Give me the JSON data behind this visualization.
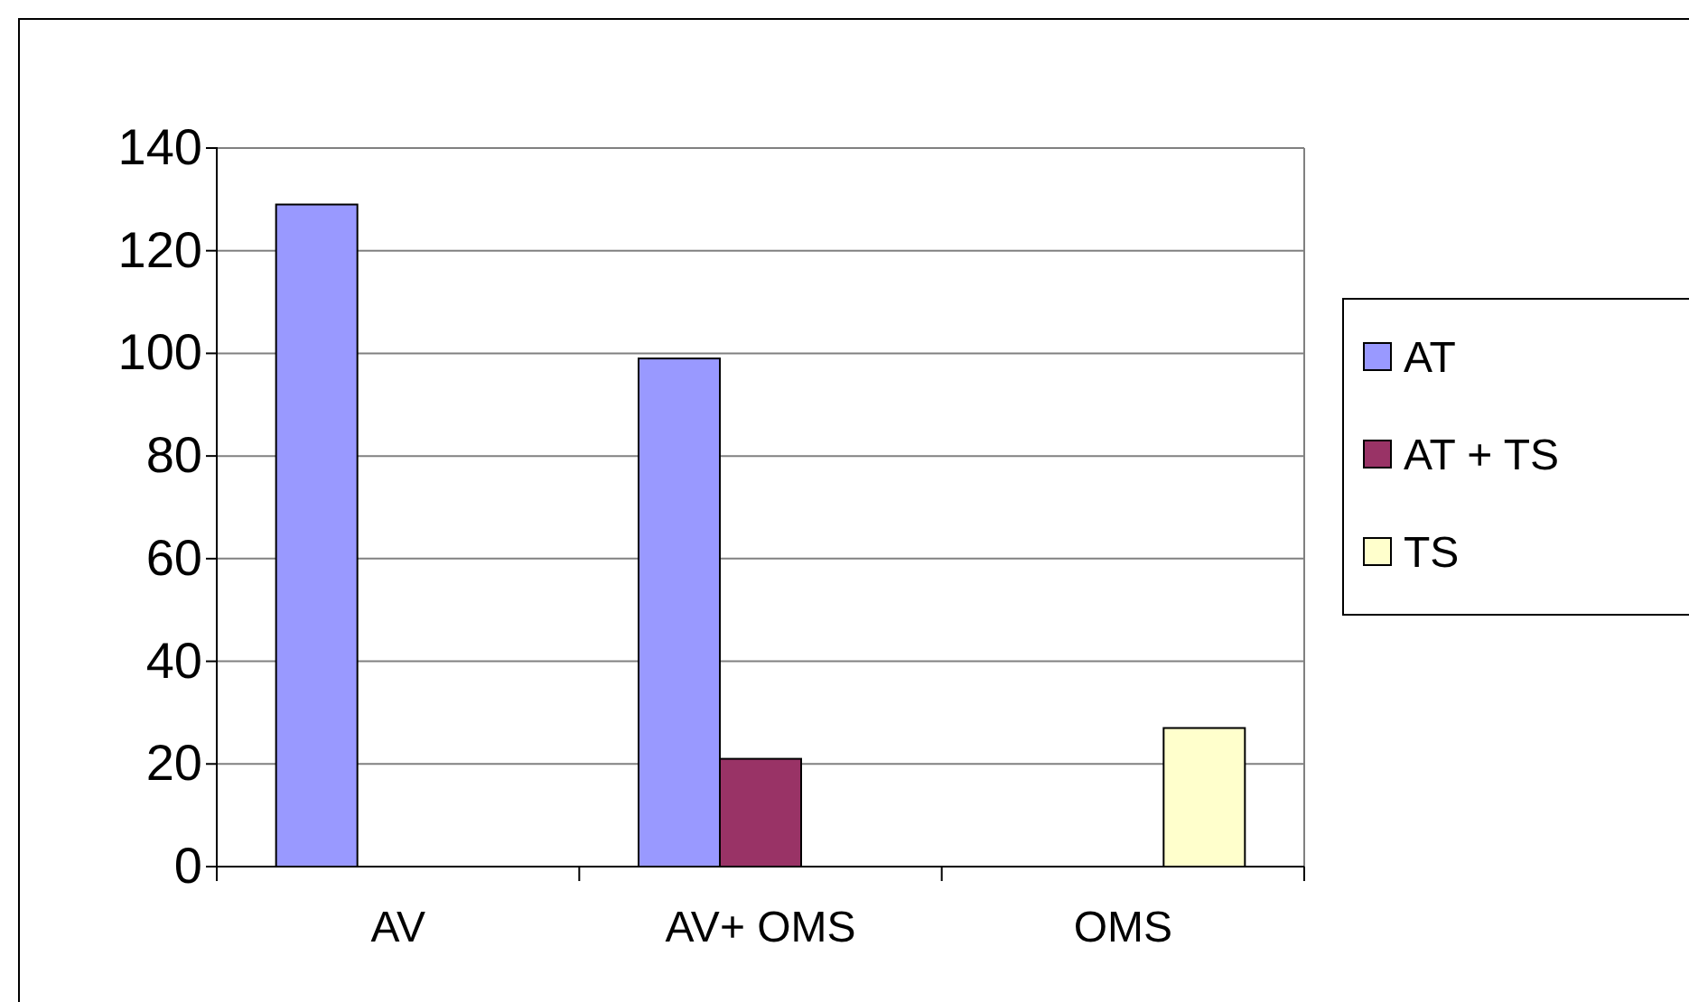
{
  "chart_data": {
    "type": "bar",
    "categories": [
      "AV",
      "AV+ OMS",
      "OMS"
    ],
    "series": [
      {
        "name": "AT",
        "color": "#9999ff",
        "values": [
          129,
          99,
          null
        ]
      },
      {
        "name": "AT + TS",
        "color": "#993366",
        "values": [
          null,
          21,
          null
        ]
      },
      {
        "name": "TS",
        "color": "#ffffcc",
        "values": [
          null,
          null,
          27
        ]
      }
    ],
    "ylim": [
      0,
      140
    ],
    "yticks": [
      0,
      20,
      40,
      60,
      80,
      100,
      120,
      140
    ],
    "grid": "y",
    "legend": "right"
  }
}
